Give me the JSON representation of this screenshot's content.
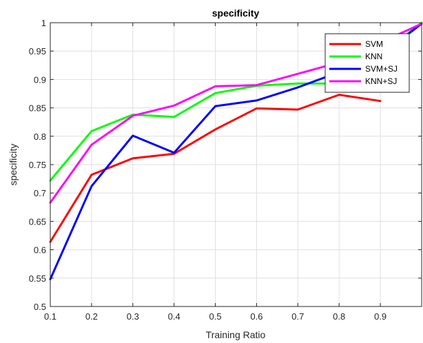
{
  "chart_data": {
    "type": "line",
    "title": "specificity",
    "xlabel": "Training Ratio",
    "ylabel": "specificity",
    "xlim": [
      0.1,
      1.0
    ],
    "ylim": [
      0.5,
      1.0
    ],
    "xticks": [
      0.1,
      0.2,
      0.3,
      0.4,
      0.5,
      0.6,
      0.7,
      0.8,
      0.9
    ],
    "xtick_labels": [
      "0.1",
      "0.2",
      "0.3",
      "0.4",
      "0.5",
      "0.6",
      "0.7",
      "0.8",
      "0.9"
    ],
    "yticks": [
      0.5,
      0.55,
      0.6,
      0.65,
      0.7,
      0.75,
      0.8,
      0.85,
      0.9,
      0.95,
      1.0
    ],
    "ytick_labels": [
      "0.5",
      "0.55",
      "0.6",
      "0.65",
      "0.7",
      "0.75",
      "0.8",
      "0.85",
      "0.9",
      "0.95",
      "1"
    ],
    "grid": true,
    "legend_position": "top-right",
    "series": [
      {
        "name": "SVM",
        "color": "#ff0000",
        "x": [
          0.1,
          0.2,
          0.3,
          0.4,
          0.5,
          0.6,
          0.7,
          0.8,
          0.9
        ],
        "y": [
          0.614,
          0.732,
          0.761,
          0.769,
          0.812,
          0.849,
          0.847,
          0.873,
          0.862
        ]
      },
      {
        "name": "KNN",
        "color": "#00ff00",
        "x": [
          0.1,
          0.2,
          0.3,
          0.4,
          0.5,
          0.6,
          0.7,
          0.8,
          0.9,
          1.0
        ],
        "y": [
          0.722,
          0.809,
          0.838,
          0.834,
          0.876,
          0.889,
          0.893,
          0.893,
          0.944,
          1.0
        ]
      },
      {
        "name": "SVM+SJ",
        "color": "#0000ff",
        "x": [
          0.1,
          0.2,
          0.3,
          0.4,
          0.5,
          0.6,
          0.7,
          0.8,
          0.9,
          1.0
        ],
        "y": [
          0.548,
          0.712,
          0.801,
          0.771,
          0.853,
          0.863,
          0.886,
          0.913,
          0.943,
          0.998
        ]
      },
      {
        "name": "KNN+SJ",
        "color": "#ff00ff",
        "x": [
          0.1,
          0.2,
          0.3,
          0.4,
          0.5,
          0.6,
          0.7,
          0.8,
          0.9,
          1.0
        ],
        "y": [
          0.683,
          0.785,
          0.836,
          0.854,
          0.888,
          0.89,
          0.91,
          0.93,
          0.965,
          0.998
        ]
      }
    ]
  }
}
